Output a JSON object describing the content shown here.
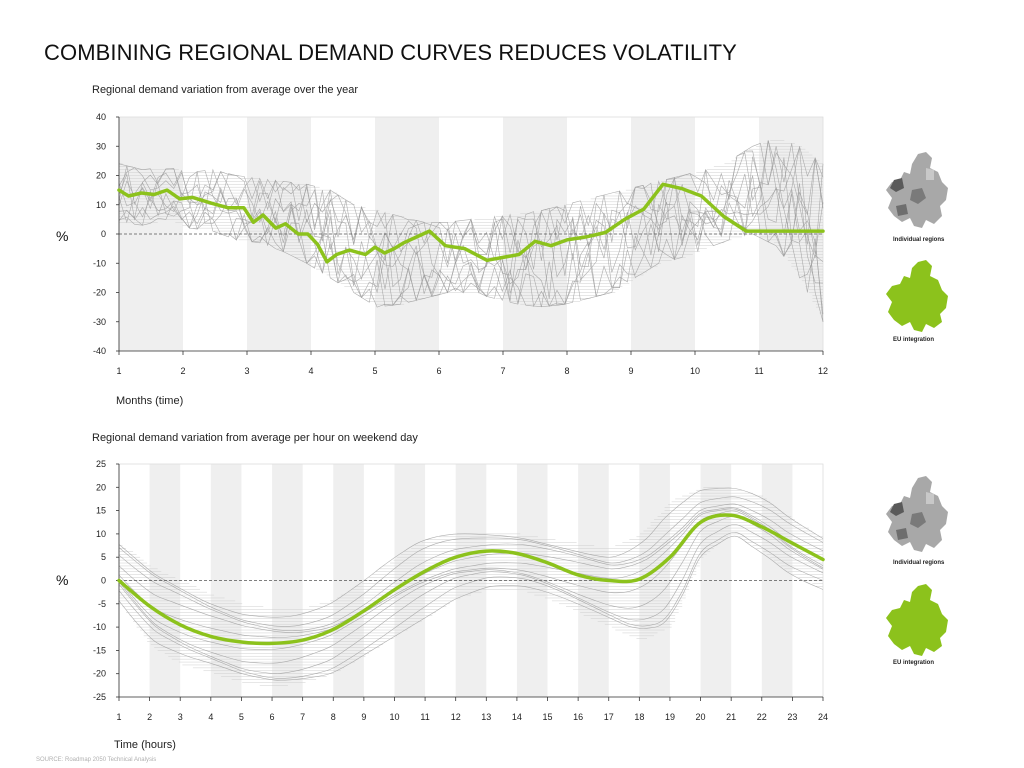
{
  "page": {
    "title": "COMBINING REGIONAL DEMAND CURVES REDUCES VOLATILITY",
    "source": "SOURCE: Roadmap 2050 Technical Analysis"
  },
  "colors": {
    "eu_line": "#8cc21c",
    "regions_line": "#9a9a9a",
    "band": "#efefef",
    "map_grey": "#9a9a9a",
    "map_green": "#8cc21c"
  },
  "legend": {
    "individual_label": "Individual regions",
    "eu_label": "EU integration",
    "individual_icon": "europe-map-grey-icon",
    "eu_icon": "europe-map-green-icon"
  },
  "chart_data": [
    {
      "type": "line",
      "title": "Regional demand variation from average over the year",
      "xlabel": "Months (time)",
      "ylabel": "%",
      "ylim": [
        -40,
        40
      ],
      "yticks": [
        40,
        30,
        20,
        10,
        0,
        -10,
        -20,
        -30,
        -40
      ],
      "xlim": [
        1,
        12
      ],
      "xticks": [
        "1",
        "2",
        "3",
        "4",
        "5",
        "6",
        "7",
        "8",
        "9",
        "10",
        "11",
        "12"
      ],
      "grid": "alternating vertical bands",
      "series": [
        {
          "name": "EU integration",
          "x": [
            1,
            1.15,
            1.35,
            1.55,
            1.75,
            1.95,
            2.15,
            2.45,
            2.7,
            2.95,
            3.1,
            3.25,
            3.45,
            3.6,
            3.8,
            3.95,
            4.1,
            4.25,
            4.4,
            4.6,
            4.85,
            5.0,
            5.15,
            5.3,
            5.45,
            5.6,
            5.85,
            6.1,
            6.4,
            6.75,
            7.0,
            7.25,
            7.5,
            7.75,
            8.0,
            8.3,
            8.6,
            8.9,
            9.2,
            9.5,
            9.8,
            10.1,
            10.45,
            10.8,
            11.1,
            11.3,
            11.55,
            11.75,
            12.0
          ],
          "values": [
            15,
            13,
            14,
            13.5,
            15,
            12,
            12.5,
            10.5,
            9,
            9,
            4,
            6.5,
            2,
            3.5,
            0,
            0,
            -3.5,
            -9.5,
            -7,
            -5.5,
            -7,
            -4.5,
            -6.5,
            -5,
            -3,
            -1.5,
            1,
            -4,
            -5,
            -9,
            -8,
            -7,
            -2.5,
            -4,
            -2,
            -1,
            0.5,
            5,
            8.5,
            17,
            15.5,
            13,
            6,
            1,
            0,
            0,
            0,
            0,
            0
          ]
        },
        {
          "name": "Individual regions",
          "note": "grey band of ~10 noisy regional curves",
          "band_upper": [
            24,
            22,
            23,
            21,
            22,
            20,
            19,
            18,
            17,
            15,
            10,
            8,
            6,
            4,
            4,
            5,
            6,
            7,
            8,
            10,
            12,
            14,
            16,
            18,
            20,
            22,
            25,
            30,
            33,
            30,
            24
          ],
          "band_lower": [
            4,
            3,
            5,
            2,
            1,
            -2,
            -3,
            -6,
            -10,
            -15,
            -20,
            -25,
            -24,
            -22,
            -20,
            -20,
            -22,
            -24,
            -25,
            -24,
            -22,
            -20,
            -15,
            -10,
            -8,
            -5,
            -2,
            0,
            -4,
            -15,
            -30
          ]
        }
      ]
    },
    {
      "type": "line",
      "title": "Regional demand variation from average per hour on weekend day",
      "xlabel": "Time (hours)",
      "ylabel": "%",
      "ylim": [
        -25,
        25
      ],
      "yticks": [
        25,
        20,
        15,
        10,
        5,
        0,
        -5,
        -10,
        -15,
        -20,
        -25
      ],
      "xlim": [
        1,
        24
      ],
      "xticks": [
        "1",
        "2",
        "3",
        "4",
        "5",
        "6",
        "7",
        "8",
        "9",
        "10",
        "11",
        "12",
        "13",
        "14",
        "15",
        "16",
        "17",
        "18",
        "19",
        "20",
        "21",
        "22",
        "23",
        "24"
      ],
      "grid": "alternating vertical bands",
      "series": [
        {
          "name": "EU integration",
          "x": [
            1,
            2,
            3,
            4,
            5,
            6,
            7,
            8,
            9,
            10,
            11,
            12,
            13,
            14,
            15,
            16,
            17,
            18,
            19,
            20,
            21,
            22,
            23,
            24
          ],
          "values": [
            0,
            -5.5,
            -9.5,
            -12,
            -13.2,
            -13.5,
            -12.8,
            -10.5,
            -6.5,
            -2,
            2,
            5,
            6.3,
            5.8,
            3.8,
            1.2,
            0,
            0.3,
            5,
            12.5,
            14,
            11.5,
            8,
            4.5
          ]
        },
        {
          "name": "Individual regions",
          "band_upper": [
            8,
            3,
            0,
            -3,
            -5,
            -6,
            -6,
            -4,
            0,
            5,
            9,
            10,
            10,
            10,
            9,
            8,
            7,
            10,
            17,
            20,
            20,
            18,
            13,
            9
          ],
          "band_lower": [
            -5,
            -14,
            -18,
            -20,
            -22,
            -23,
            -22,
            -20,
            -16,
            -12,
            -8,
            -4,
            -2,
            -2,
            -4,
            -7,
            -10,
            -13,
            -10,
            5,
            10,
            6,
            1,
            -2
          ]
        }
      ]
    }
  ]
}
